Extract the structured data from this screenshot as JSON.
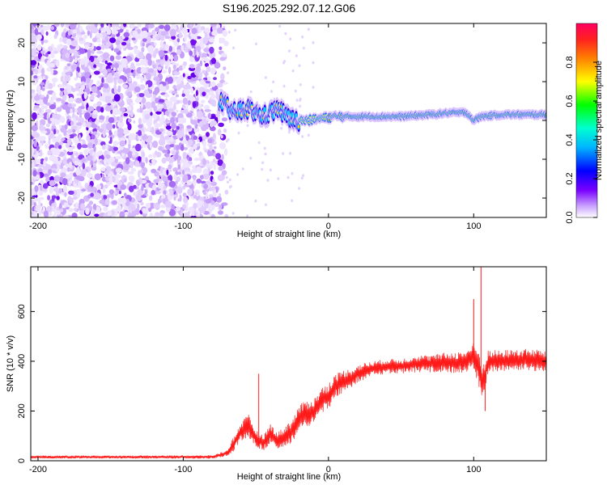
{
  "figure": {
    "title": "S196.2025.292.07.12.G06"
  },
  "chart_data": [
    {
      "type": "heatmap",
      "title": "S196.2025.292.07.12.G06",
      "xlabel": "Height of straight line (km)",
      "ylabel": "Frequency (Hz)",
      "xlim": [
        -205,
        150
      ],
      "ylim": [
        -25,
        25
      ],
      "x_ticks": [
        -200,
        -100,
        0,
        100
      ],
      "y_ticks": [
        -20,
        -10,
        0,
        10,
        20
      ],
      "colorbar": {
        "label": "Normalized spectral amplitude",
        "range": [
          0,
          1
        ],
        "ticks": [
          0.0,
          0.2,
          0.4,
          0.6,
          0.8
        ],
        "colormap": [
          "#ffffff",
          "#7a00ff",
          "#0000ff",
          "#00e0ff",
          "#00ff00",
          "#ffff00",
          "#ff8000",
          "#ff0040"
        ]
      },
      "signal_track": {
        "x": [
          -75,
          -65,
          -55,
          -45,
          -35,
          -25,
          -15,
          -5,
          5,
          15,
          30,
          50,
          70,
          85,
          95,
          100,
          105,
          120,
          150
        ],
        "frequency": [
          5,
          2,
          3,
          1,
          3,
          0,
          0,
          0.5,
          1,
          1,
          1,
          1,
          1.5,
          2,
          2,
          0,
          1,
          1.5,
          1.5
        ]
      },
      "noise_region": {
        "x_range": [
          -205,
          -70
        ],
        "y_range": [
          -25,
          25
        ]
      },
      "grid": false
    },
    {
      "type": "line",
      "xlabel": "Height of straight line (km)",
      "ylabel": "SNR (10 * v/v)",
      "xlim": [
        -205,
        150
      ],
      "ylim": [
        0,
        780
      ],
      "x_ticks": [
        -200,
        -100,
        0,
        100
      ],
      "y_ticks": [
        0,
        200,
        400,
        600
      ],
      "color": "#ff0000",
      "envelope": {
        "x": [
          -205,
          -150,
          -80,
          -70,
          -65,
          -60,
          -55,
          -50,
          -45,
          -40,
          -35,
          -30,
          -25,
          -20,
          -15,
          -10,
          -5,
          0,
          5,
          10,
          15,
          20,
          25,
          30,
          40,
          50,
          60,
          70,
          80,
          90,
          95,
          100,
          103,
          106,
          108,
          110,
          115,
          120,
          130,
          140,
          150
        ],
        "mean": [
          15,
          15,
          15,
          30,
          70,
          120,
          140,
          90,
          70,
          110,
          80,
          100,
          120,
          170,
          190,
          200,
          240,
          260,
          300,
          320,
          330,
          350,
          360,
          370,
          380,
          380,
          390,
          390,
          395,
          395,
          400,
          420,
          380,
          320,
          350,
          400,
          400,
          400,
          405,
          405,
          400
        ],
        "spread": [
          12,
          12,
          14,
          25,
          60,
          80,
          90,
          70,
          60,
          80,
          70,
          80,
          100,
          110,
          110,
          100,
          110,
          110,
          100,
          90,
          80,
          70,
          70,
          60,
          60,
          60,
          70,
          70,
          80,
          90,
          90,
          110,
          140,
          150,
          110,
          90,
          90,
          90,
          90,
          90,
          90
        ]
      },
      "spikes": [
        {
          "x": -48,
          "y": 350
        },
        {
          "x": 105,
          "y": 780
        },
        {
          "x": 108,
          "y": 200
        },
        {
          "x": 100,
          "y": 650
        }
      ],
      "grid": false
    }
  ]
}
